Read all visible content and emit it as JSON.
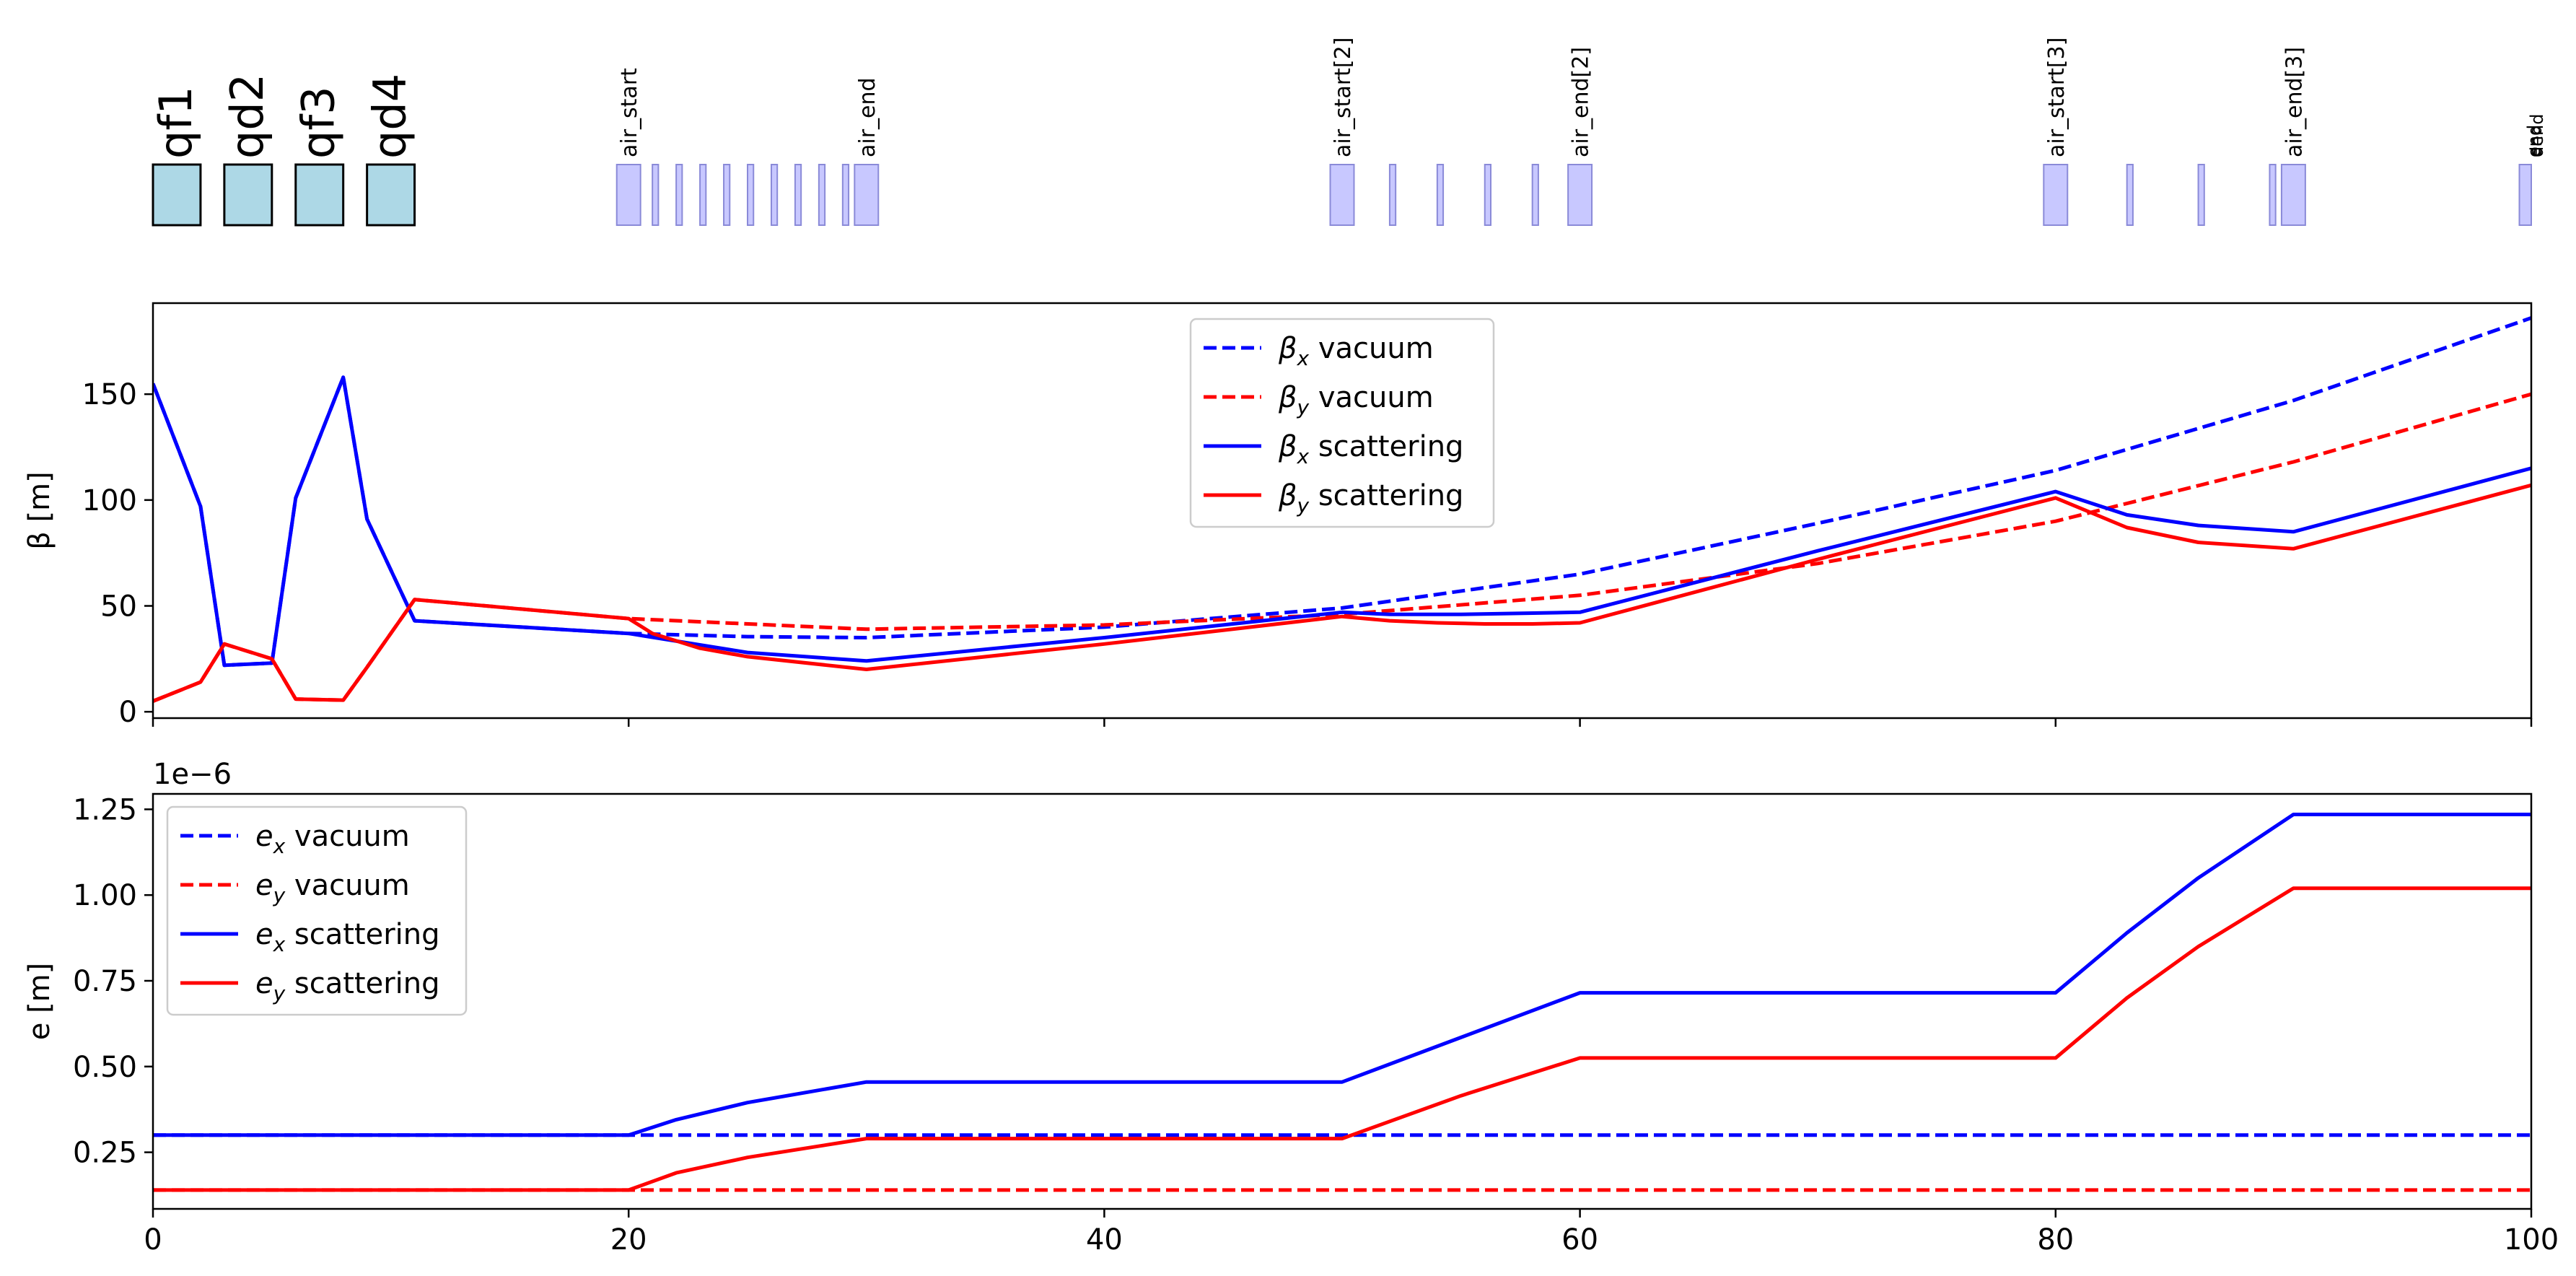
{
  "chart_data": [
    {
      "type": "lattice",
      "x_range": [
        0,
        100
      ],
      "quadrupoles": [
        {
          "name": "qf1",
          "s": 0,
          "l": 2
        },
        {
          "name": "qd2",
          "s": 3,
          "l": 2
        },
        {
          "name": "qf3",
          "s": 6,
          "l": 2
        },
        {
          "name": "qd4",
          "s": 9,
          "l": 2
        }
      ],
      "markers": [
        {
          "name": "air_start",
          "s": 19.5,
          "l": 1
        },
        {
          "name": "",
          "s": 21.0,
          "l": 0.25
        },
        {
          "name": "",
          "s": 22.0,
          "l": 0.25
        },
        {
          "name": "",
          "s": 23.0,
          "l": 0.25
        },
        {
          "name": "",
          "s": 24.0,
          "l": 0.25
        },
        {
          "name": "",
          "s": 25.0,
          "l": 0.25
        },
        {
          "name": "",
          "s": 26.0,
          "l": 0.25
        },
        {
          "name": "",
          "s": 27.0,
          "l": 0.25
        },
        {
          "name": "",
          "s": 28.0,
          "l": 0.25
        },
        {
          "name": "",
          "s": 29.0,
          "l": 0.25
        },
        {
          "name": "air_end",
          "s": 29.5,
          "l": 1
        },
        {
          "name": "air_start[2]",
          "s": 49.5,
          "l": 1
        },
        {
          "name": "",
          "s": 52.0,
          "l": 0.25
        },
        {
          "name": "",
          "s": 54.0,
          "l": 0.25
        },
        {
          "name": "",
          "s": 56.0,
          "l": 0.25
        },
        {
          "name": "",
          "s": 58.0,
          "l": 0.25
        },
        {
          "name": "air_end[2]",
          "s": 59.5,
          "l": 1
        },
        {
          "name": "air_start[3]",
          "s": 79.5,
          "l": 1
        },
        {
          "name": "",
          "s": 83.0,
          "l": 0.25
        },
        {
          "name": "",
          "s": 86.0,
          "l": 0.25
        },
        {
          "name": "",
          "s": 89.0,
          "l": 0.25
        },
        {
          "name": "air_end[3]",
          "s": 89.5,
          "l": 1
        },
        {
          "name": "",
          "s": 99.5,
          "l": 0.5
        }
      ],
      "end_labels": [
        "end",
        "end",
        "dend"
      ]
    },
    {
      "type": "line",
      "x_range": [
        0,
        100
      ],
      "ylim": [
        -3,
        193
      ],
      "ylabel": "β [m]",
      "yticks": [
        "0",
        "50",
        "100",
        "150"
      ],
      "ytick_values": [
        0,
        50,
        100,
        150
      ],
      "xticks": [
        0,
        20,
        40,
        60,
        80,
        100
      ],
      "legend_position": "top-center",
      "series": [
        {
          "name": "βx vacuum",
          "sym": "β",
          "sub": "x",
          "rest": " vacuum",
          "color": "#0000ff",
          "dash": true,
          "x": [
            0,
            2,
            3,
            5,
            6,
            8,
            9,
            11,
            20,
            25,
            30,
            40,
            50,
            60,
            70,
            80,
            90,
            100
          ],
          "y": [
            155,
            97,
            22,
            23,
            101,
            158,
            91,
            43,
            37,
            35.5,
            35,
            40,
            49,
            65,
            89,
            114,
            147,
            186
          ]
        },
        {
          "name": "βy vacuum",
          "sym": "β",
          "sub": "y",
          "rest": " vacuum",
          "color": "#ff0000",
          "dash": true,
          "x": [
            0,
            2,
            3,
            5,
            6,
            8,
            9,
            11,
            20,
            30,
            40,
            50,
            60,
            70,
            80,
            90,
            100
          ],
          "y": [
            5,
            14,
            32,
            25,
            6,
            5.5,
            21,
            53,
            44,
            39,
            41,
            46,
            55,
            70,
            90,
            118,
            150
          ]
        },
        {
          "name": "βx scattering",
          "sym": "β",
          "sub": "x",
          "rest": " scattering",
          "color": "#0000ff",
          "dash": false,
          "x": [
            0,
            2,
            3,
            5,
            6,
            8,
            9,
            11,
            20,
            25,
            30,
            40,
            50,
            52,
            55,
            60,
            70,
            80,
            83,
            86,
            90,
            100
          ],
          "y": [
            155,
            97,
            22,
            23,
            101,
            158,
            91,
            43,
            37,
            28,
            24,
            35,
            47,
            46,
            46,
            47,
            76,
            104,
            93,
            88,
            85,
            115
          ]
        },
        {
          "name": "βy scattering",
          "sym": "β",
          "sub": "y",
          "rest": " scattering",
          "color": "#ff0000",
          "dash": false,
          "x": [
            0,
            2,
            3,
            5,
            6,
            8,
            9,
            11,
            20,
            21,
            23,
            25,
            30,
            40,
            50,
            52,
            54,
            56,
            58,
            60,
            70,
            80,
            83,
            86,
            90,
            100
          ],
          "y": [
            5,
            14,
            32,
            25,
            6,
            5.5,
            21,
            53,
            44,
            37,
            30,
            26,
            20,
            32,
            45,
            43,
            42,
            41.5,
            41.5,
            42,
            72,
            101,
            87,
            80,
            77,
            107
          ]
        }
      ]
    },
    {
      "type": "line",
      "x_range": [
        0,
        100
      ],
      "ylim": [
        0.085,
        1.295
      ],
      "ylabel": "e [m]",
      "offset_text": "1e−6",
      "yticks": [
        "0.25",
        "0.50",
        "0.75",
        "1.00",
        "1.25"
      ],
      "ytick_values": [
        0.25,
        0.5,
        0.75,
        1.0,
        1.25
      ],
      "xticks": [
        "0",
        "20",
        "40",
        "60",
        "80",
        "100"
      ],
      "xtick_values": [
        0,
        20,
        40,
        60,
        80,
        100
      ],
      "legend_position": "upper-left",
      "series": [
        {
          "name": "ex vacuum",
          "sym": "e",
          "sub": "x",
          "rest": " vacuum",
          "color": "#0000ff",
          "dash": true,
          "x": [
            0,
            100
          ],
          "y": [
            0.3,
            0.3
          ]
        },
        {
          "name": "ey vacuum",
          "sym": "e",
          "sub": "y",
          "rest": " vacuum",
          "color": "#ff0000",
          "dash": true,
          "x": [
            0,
            100
          ],
          "y": [
            0.14,
            0.14
          ]
        },
        {
          "name": "ex scattering",
          "sym": "e",
          "sub": "x",
          "rest": " scattering",
          "color": "#0000ff",
          "dash": false,
          "x": [
            0,
            20,
            22,
            25,
            30,
            50,
            55,
            60,
            80,
            83,
            86,
            90,
            100
          ],
          "y": [
            0.3,
            0.3,
            0.345,
            0.395,
            0.455,
            0.455,
            0.585,
            0.715,
            0.715,
            0.89,
            1.05,
            1.235,
            1.235
          ]
        },
        {
          "name": "ey scattering",
          "sym": "e",
          "sub": "y",
          "rest": " scattering",
          "color": "#ff0000",
          "dash": false,
          "x": [
            0,
            20,
            22,
            25,
            30,
            50,
            55,
            60,
            80,
            83,
            86,
            90,
            100
          ],
          "y": [
            0.14,
            0.14,
            0.19,
            0.235,
            0.29,
            0.29,
            0.415,
            0.525,
            0.525,
            0.7,
            0.85,
            1.02,
            1.02
          ]
        }
      ]
    }
  ]
}
